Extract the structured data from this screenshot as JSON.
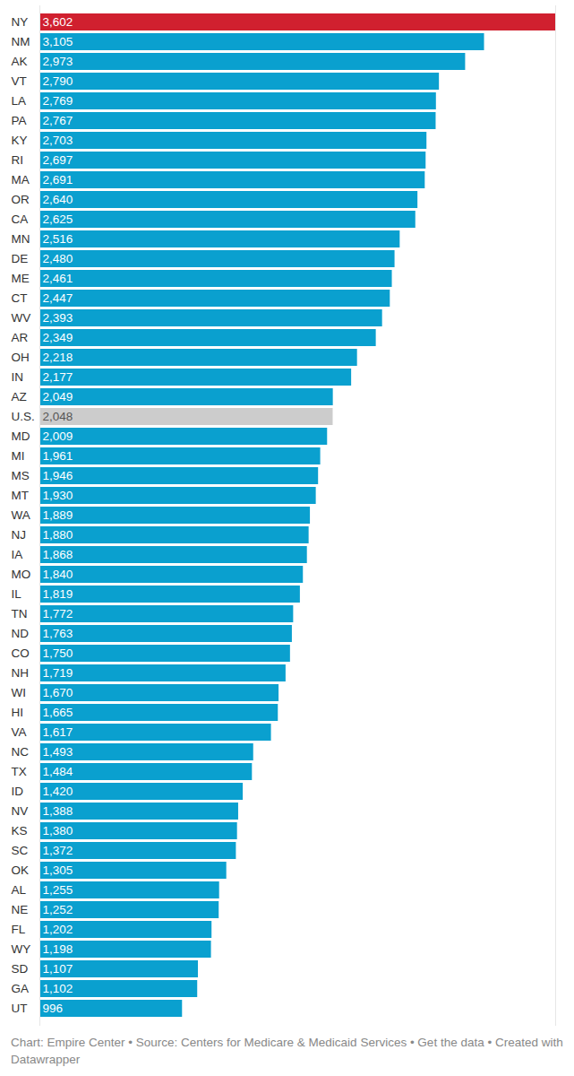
{
  "chart_data": {
    "type": "bar",
    "orientation": "horizontal",
    "caption": "Chart: Empire Center • Source: Centers for Medicare & Medicaid Services • Get the data • Created with Datawrapper",
    "categories": [
      "NY",
      "NM",
      "AK",
      "VT",
      "LA",
      "PA",
      "KY",
      "RI",
      "MA",
      "OR",
      "CA",
      "MN",
      "DE",
      "ME",
      "CT",
      "WV",
      "AR",
      "OH",
      "IN",
      "AZ",
      "U.S.",
      "MD",
      "MI",
      "MS",
      "MT",
      "WA",
      "NJ",
      "IA",
      "MO",
      "IL",
      "TN",
      "ND",
      "CO",
      "NH",
      "WI",
      "HI",
      "VA",
      "NC",
      "TX",
      "ID",
      "NV",
      "KS",
      "SC",
      "OK",
      "AL",
      "NE",
      "FL",
      "WY",
      "SD",
      "GA",
      "UT"
    ],
    "values": [
      3602,
      3105,
      2973,
      2790,
      2769,
      2767,
      2703,
      2697,
      2691,
      2640,
      2625,
      2516,
      2480,
      2461,
      2447,
      2393,
      2349,
      2218,
      2177,
      2049,
      2048,
      2009,
      1961,
      1946,
      1930,
      1889,
      1880,
      1868,
      1840,
      1819,
      1772,
      1763,
      1750,
      1719,
      1670,
      1665,
      1617,
      1493,
      1484,
      1420,
      1388,
      1380,
      1372,
      1305,
      1255,
      1252,
      1202,
      1198,
      1107,
      1102,
      996
    ],
    "value_labels": [
      "3,602",
      "3,105",
      "2,973",
      "2,790",
      "2,769",
      "2,767",
      "2,703",
      "2,697",
      "2,691",
      "2,640",
      "2,625",
      "2,516",
      "2,480",
      "2,461",
      "2,447",
      "2,393",
      "2,349",
      "2,218",
      "2,177",
      "2,049",
      "2,048",
      "2,009",
      "1,961",
      "1,946",
      "1,930",
      "1,889",
      "1,880",
      "1,868",
      "1,840",
      "1,819",
      "1,772",
      "1,763",
      "1,750",
      "1,719",
      "1,670",
      "1,665",
      "1,617",
      "1,493",
      "1,484",
      "1,420",
      "1,388",
      "1,380",
      "1,372",
      "1,305",
      "1,255",
      "1,252",
      "1,202",
      "1,198",
      "1,107",
      "1,102",
      "996"
    ],
    "colors": [
      "#d0202f",
      "#0aa0cf",
      "#0aa0cf",
      "#0aa0cf",
      "#0aa0cf",
      "#0aa0cf",
      "#0aa0cf",
      "#0aa0cf",
      "#0aa0cf",
      "#0aa0cf",
      "#0aa0cf",
      "#0aa0cf",
      "#0aa0cf",
      "#0aa0cf",
      "#0aa0cf",
      "#0aa0cf",
      "#0aa0cf",
      "#0aa0cf",
      "#0aa0cf",
      "#0aa0cf",
      "#cccccc",
      "#0aa0cf",
      "#0aa0cf",
      "#0aa0cf",
      "#0aa0cf",
      "#0aa0cf",
      "#0aa0cf",
      "#0aa0cf",
      "#0aa0cf",
      "#0aa0cf",
      "#0aa0cf",
      "#0aa0cf",
      "#0aa0cf",
      "#0aa0cf",
      "#0aa0cf",
      "#0aa0cf",
      "#0aa0cf",
      "#0aa0cf",
      "#0aa0cf",
      "#0aa0cf",
      "#0aa0cf",
      "#0aa0cf",
      "#0aa0cf",
      "#0aa0cf",
      "#0aa0cf",
      "#0aa0cf",
      "#0aa0cf",
      "#0aa0cf",
      "#0aa0cf",
      "#0aa0cf",
      "#0aa0cf"
    ],
    "xlim": [
      0,
      3602
    ],
    "xticks": [],
    "grid": false,
    "data_labels": true,
    "tick_labels": "y"
  }
}
